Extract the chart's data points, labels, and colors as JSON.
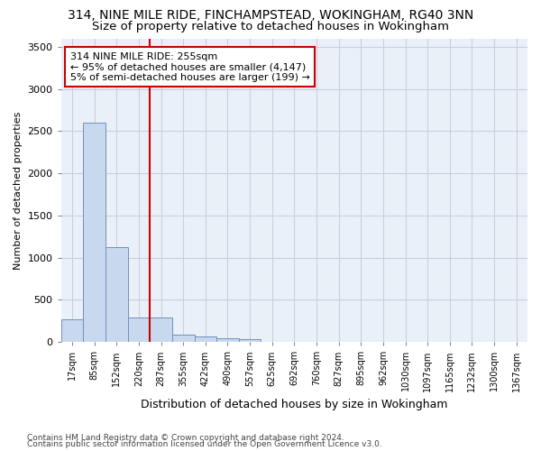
{
  "title": "314, NINE MILE RIDE, FINCHAMPSTEAD, WOKINGHAM, RG40 3NN",
  "subtitle": "Size of property relative to detached houses in Wokingham",
  "xlabel": "Distribution of detached houses by size in Wokingham",
  "ylabel": "Number of detached properties",
  "categories": [
    "17sqm",
    "85sqm",
    "152sqm",
    "220sqm",
    "287sqm",
    "355sqm",
    "422sqm",
    "490sqm",
    "557sqm",
    "625sqm",
    "692sqm",
    "760sqm",
    "827sqm",
    "895sqm",
    "962sqm",
    "1030sqm",
    "1097sqm",
    "1165sqm",
    "1232sqm",
    "1300sqm",
    "1367sqm"
  ],
  "values": [
    270,
    2600,
    1120,
    290,
    290,
    90,
    70,
    40,
    30,
    0,
    0,
    0,
    0,
    0,
    0,
    0,
    0,
    0,
    0,
    0,
    0
  ],
  "bar_color": "#c8d8ee",
  "bar_edge_color": "#7090c0",
  "annotation_text": "314 NINE MILE RIDE: 255sqm\n← 95% of detached houses are smaller (4,147)\n5% of semi-detached houses are larger (199) →",
  "annotation_box_color": "#ffffff",
  "annotation_box_edge": "#cc0000",
  "vline_color": "#cc0000",
  "vline_x": 3.5,
  "ylim": [
    0,
    3600
  ],
  "yticks": [
    0,
    500,
    1000,
    1500,
    2000,
    2500,
    3000,
    3500
  ],
  "footer1": "Contains HM Land Registry data © Crown copyright and database right 2024.",
  "footer2": "Contains public sector information licensed under the Open Government Licence v3.0.",
  "bg_color": "#eaf0f8",
  "title_fontsize": 10,
  "subtitle_fontsize": 9.5
}
